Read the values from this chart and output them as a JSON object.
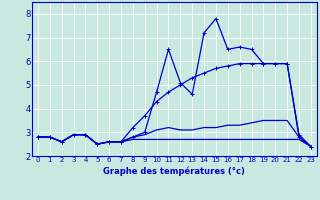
{
  "xlabel": "Graphe des températures (°c)",
  "x": [
    0,
    1,
    2,
    3,
    4,
    5,
    6,
    7,
    8,
    9,
    10,
    11,
    12,
    13,
    14,
    15,
    16,
    17,
    18,
    19,
    20,
    21,
    22,
    23
  ],
  "line_flat_low": [
    2.8,
    2.8,
    2.6,
    2.9,
    2.9,
    2.5,
    2.6,
    2.6,
    2.7,
    2.7,
    2.7,
    2.7,
    2.7,
    2.7,
    2.7,
    2.7,
    2.7,
    2.7,
    2.7,
    2.7,
    2.7,
    2.7,
    2.7,
    2.4
  ],
  "line_mean": [
    2.8,
    2.8,
    2.6,
    2.9,
    2.9,
    2.5,
    2.6,
    2.6,
    2.8,
    2.9,
    3.1,
    3.2,
    3.1,
    3.1,
    3.2,
    3.2,
    3.3,
    3.3,
    3.4,
    3.5,
    3.5,
    3.5,
    2.8,
    2.4
  ],
  "line_diag": [
    2.8,
    2.8,
    2.6,
    2.9,
    2.9,
    2.5,
    2.6,
    2.6,
    3.2,
    3.7,
    4.3,
    4.7,
    5.0,
    5.3,
    5.5,
    5.7,
    5.8,
    5.9,
    5.9,
    5.9,
    5.9,
    5.9,
    2.9,
    2.4
  ],
  "line_peak": [
    2.8,
    2.8,
    2.6,
    2.9,
    2.9,
    2.5,
    2.6,
    2.6,
    2.8,
    3.0,
    4.7,
    6.5,
    5.1,
    4.6,
    7.2,
    7.8,
    6.5,
    6.6,
    6.5,
    5.9,
    5.9,
    5.9,
    2.8,
    2.4
  ],
  "bg_color": "#c8e8e0",
  "line_color": "#0000cc",
  "ylim": [
    2.0,
    8.5
  ],
  "xlim": [
    -0.5,
    23.5
  ],
  "yticks": [
    2,
    3,
    4,
    5,
    6,
    7,
    8
  ],
  "xticks": [
    0,
    1,
    2,
    3,
    4,
    5,
    6,
    7,
    8,
    9,
    10,
    11,
    12,
    13,
    14,
    15,
    16,
    17,
    18,
    19,
    20,
    21,
    22,
    23
  ]
}
